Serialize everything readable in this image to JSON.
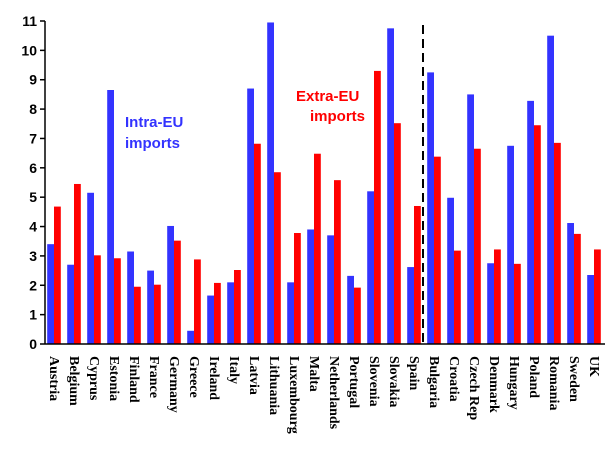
{
  "chart_data": {
    "type": "bar",
    "title": "",
    "xlabel": "",
    "ylabel": "",
    "ylim": [
      0,
      11
    ],
    "yticks": [
      0,
      1,
      2,
      3,
      4,
      5,
      6,
      7,
      8,
      9,
      10,
      11
    ],
    "grid": false,
    "legend": "none",
    "categories": [
      "Austria",
      "Belgium",
      "Cyprus",
      "Estonia",
      "Finland",
      "France",
      "Germany",
      "Greece",
      "Ireland",
      "Italy",
      "Latvia",
      "Lithuania",
      "Luxembourg",
      "Malta",
      "Netherlands",
      "Portugal",
      "Slovenia",
      "Slovakia",
      "Spain",
      "Bulgaria",
      "Croatia",
      "Czech Rep",
      "Denmark",
      "Hungary",
      "Poland",
      "Romania",
      "Sweden",
      "UK"
    ],
    "series": [
      {
        "key": "intra",
        "color": "#3333ff",
        "values": [
          3.4,
          2.7,
          5.15,
          8.65,
          3.15,
          2.5,
          4.02,
          0.45,
          1.65,
          2.1,
          8.7,
          10.95,
          2.1,
          3.9,
          3.7,
          2.32,
          5.2,
          10.75,
          2.62,
          9.25,
          4.98,
          8.5,
          2.75,
          6.75,
          8.28,
          10.5,
          4.12,
          2.35
        ]
      },
      {
        "key": "extra",
        "color": "#ff0000",
        "values": [
          4.68,
          5.45,
          3.02,
          2.92,
          1.95,
          2.02,
          3.52,
          2.88,
          2.08,
          2.52,
          6.82,
          5.85,
          3.78,
          6.48,
          5.58,
          1.92,
          9.3,
          7.52,
          4.7,
          6.38,
          3.18,
          6.65,
          3.22,
          2.73,
          7.45,
          6.85,
          3.75,
          3.22
        ]
      }
    ],
    "annotations": [
      {
        "text_lines": [
          "Intra-EU",
          "imports"
        ],
        "color": "#3333ff"
      },
      {
        "text_lines": [
          "Extra-EU",
          "imports"
        ],
        "color": "#ff0000"
      }
    ],
    "divider": {
      "after_category": "Spain",
      "style": "dashed"
    }
  }
}
